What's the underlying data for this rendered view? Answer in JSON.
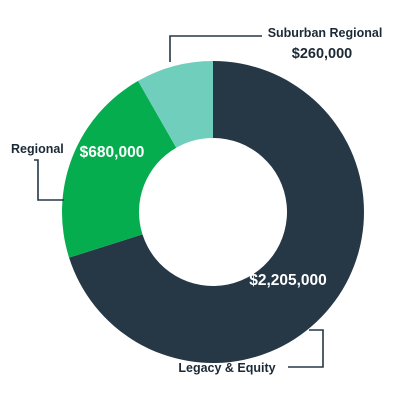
{
  "chart_data": {
    "type": "donut",
    "title": "",
    "slices": [
      {
        "name": "Legacy & Equity",
        "value": 2205000,
        "value_label": "$2,205,000",
        "color": "#263746"
      },
      {
        "name": "Regional",
        "value": 680000,
        "value_label": "$680,000",
        "color": "#06ad4f"
      },
      {
        "name": "Suburban Regional",
        "value": 260000,
        "value_label": "$260,000",
        "color": "#6fcfbc"
      }
    ],
    "legend": "none",
    "label_text_color": "#1c2a36",
    "leader_line_color": "#263746"
  }
}
